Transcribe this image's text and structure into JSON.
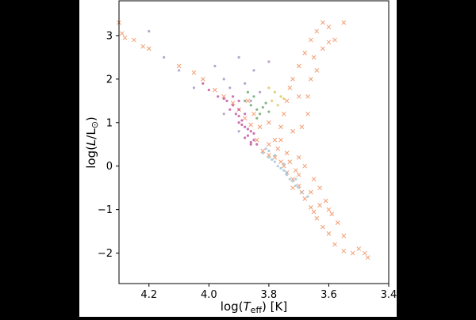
{
  "chart_data": {
    "type": "scatter",
    "title": "",
    "xlabel": "log(T_eff) [K]",
    "ylabel": "log(L/L_⊙)",
    "xlim": [
      4.3,
      3.4
    ],
    "ylim": [
      -2.7,
      3.8
    ],
    "x_inverted": true,
    "x_ticks": [
      "4.2",
      "4.0",
      "3.8",
      "3.6",
      "3.4"
    ],
    "y_ticks": [
      "−2",
      "−1",
      "0",
      "1",
      "2",
      "3"
    ],
    "grid": false,
    "legend": null,
    "series": [
      {
        "marker": "x",
        "color": "#f08c5a",
        "points": [
          [
            4.3,
            3.3
          ],
          [
            4.29,
            3.05
          ],
          [
            4.28,
            2.95
          ],
          [
            4.25,
            2.9
          ],
          [
            4.22,
            2.75
          ],
          [
            4.2,
            2.7
          ],
          [
            4.1,
            2.3
          ],
          [
            4.05,
            2.15
          ],
          [
            4.02,
            2.0
          ],
          [
            3.98,
            1.75
          ],
          [
            3.95,
            1.6
          ],
          [
            3.92,
            1.45
          ],
          [
            3.9,
            1.3
          ],
          [
            3.88,
            1.1
          ],
          [
            3.86,
            0.95
          ],
          [
            3.84,
            0.6
          ],
          [
            3.82,
            0.35
          ],
          [
            3.8,
            0.25
          ],
          [
            3.78,
            0.2
          ],
          [
            3.76,
            0.1
          ],
          [
            3.75,
            0.0
          ],
          [
            3.74,
            -0.15
          ],
          [
            3.72,
            -0.3
          ],
          [
            3.7,
            -0.45
          ],
          [
            3.69,
            -0.6
          ],
          [
            3.68,
            -0.75
          ],
          [
            3.66,
            -0.95
          ],
          [
            3.65,
            -1.05
          ],
          [
            3.64,
            -1.2
          ],
          [
            3.62,
            -1.4
          ],
          [
            3.6,
            -1.55
          ],
          [
            3.58,
            -1.8
          ],
          [
            3.55,
            -1.95
          ],
          [
            3.52,
            -2.0
          ],
          [
            3.48,
            -2.0
          ],
          [
            3.78,
            0.6
          ],
          [
            3.76,
            0.9
          ],
          [
            3.75,
            1.2
          ],
          [
            3.74,
            1.5
          ],
          [
            3.73,
            1.8
          ],
          [
            3.72,
            2.0
          ],
          [
            3.7,
            2.3
          ],
          [
            3.68,
            2.6
          ],
          [
            3.66,
            2.9
          ],
          [
            3.64,
            3.1
          ],
          [
            3.62,
            3.3
          ],
          [
            3.6,
            3.2
          ],
          [
            3.7,
            1.6
          ],
          [
            3.67,
            1.2
          ],
          [
            3.66,
            2.0
          ],
          [
            3.65,
            2.5
          ],
          [
            3.64,
            2.2
          ],
          [
            3.62,
            2.7
          ],
          [
            3.6,
            2.85
          ],
          [
            3.58,
            2.9
          ],
          [
            3.55,
            3.3
          ],
          [
            3.7,
            0.2
          ],
          [
            3.72,
            0.8
          ],
          [
            3.77,
            0.4
          ],
          [
            3.68,
            0.0
          ],
          [
            3.65,
            -0.3
          ],
          [
            3.63,
            -0.5
          ],
          [
            3.61,
            -0.8
          ],
          [
            3.59,
            -1.1
          ],
          [
            3.57,
            -1.3
          ],
          [
            3.8,
            0.5
          ],
          [
            3.83,
            0.9
          ],
          [
            3.85,
            1.2
          ],
          [
            3.87,
            1.5
          ],
          [
            3.8,
            1.0
          ],
          [
            3.7,
            -0.2
          ],
          [
            3.72,
            -0.5
          ],
          [
            3.74,
            0.3
          ],
          [
            3.76,
            0.6
          ],
          [
            3.69,
            0.9
          ],
          [
            3.67,
            1.6
          ],
          [
            3.6,
            -1.0
          ],
          [
            3.55,
            -1.6
          ],
          [
            3.5,
            -1.9
          ],
          [
            3.47,
            -2.1
          ],
          [
            3.63,
            -0.9
          ],
          [
            3.66,
            -0.6
          ],
          [
            3.71,
            -0.1
          ],
          [
            3.73,
            0.1
          ]
        ]
      },
      {
        "marker": "dot",
        "color": "#c0509a",
        "points": [
          [
            3.92,
            1.4
          ],
          [
            3.9,
            1.3
          ],
          [
            3.88,
            1.2
          ],
          [
            3.9,
            1.0
          ],
          [
            3.88,
            0.9
          ],
          [
            3.86,
            0.8
          ],
          [
            3.87,
            0.7
          ],
          [
            3.85,
            0.6
          ],
          [
            3.86,
            0.5
          ],
          [
            3.84,
            0.5
          ],
          [
            3.92,
            1.6
          ],
          [
            3.94,
            1.5
          ],
          [
            3.9,
            1.5
          ],
          [
            3.89,
            1.05
          ],
          [
            3.87,
            0.85
          ],
          [
            3.91,
            1.2
          ],
          [
            3.85,
            0.75
          ],
          [
            3.93,
            1.3
          ],
          [
            3.95,
            1.55
          ],
          [
            3.88,
            0.65
          ],
          [
            4.02,
            1.9
          ],
          [
            4.0,
            1.75
          ],
          [
            3.97,
            1.6
          ],
          [
            3.89,
            0.95
          ],
          [
            3.86,
            0.55
          ],
          [
            3.9,
            1.15
          ]
        ]
      },
      {
        "marker": "dot",
        "color": "#66a266",
        "points": [
          [
            3.86,
            1.4
          ],
          [
            3.84,
            1.3
          ],
          [
            3.83,
            1.2
          ],
          [
            3.88,
            1.5
          ],
          [
            3.85,
            1.6
          ],
          [
            3.82,
            1.35
          ],
          [
            3.8,
            1.25
          ],
          [
            3.87,
            1.7
          ],
          [
            3.84,
            1.1
          ],
          [
            3.81,
            1.45
          ]
        ]
      },
      {
        "marker": "dot",
        "color": "#a78fc0",
        "points": [
          [
            4.2,
            3.1
          ],
          [
            4.15,
            2.5
          ],
          [
            4.1,
            2.2
          ],
          [
            4.05,
            1.8
          ],
          [
            3.98,
            2.3
          ],
          [
            3.95,
            2.0
          ],
          [
            3.93,
            1.8
          ],
          [
            3.9,
            2.5
          ],
          [
            3.88,
            1.9
          ],
          [
            3.85,
            2.2
          ],
          [
            3.83,
            1.7
          ],
          [
            3.8,
            2.4
          ],
          [
            3.95,
            1.2
          ],
          [
            3.9,
            0.8
          ],
          [
            3.86,
            1.5
          ]
        ]
      },
      {
        "marker": "dot",
        "color": "#d7c85c",
        "points": [
          [
            3.78,
            1.7
          ],
          [
            3.76,
            1.6
          ],
          [
            3.79,
            1.5
          ],
          [
            3.77,
            1.4
          ],
          [
            3.75,
            1.55
          ],
          [
            3.8,
            1.8
          ]
        ]
      },
      {
        "marker": "dot",
        "color": "#9fc4d8",
        "points": [
          [
            3.82,
            0.3
          ],
          [
            3.8,
            0.2
          ],
          [
            3.78,
            0.1
          ],
          [
            3.77,
            0.0
          ],
          [
            3.75,
            -0.1
          ],
          [
            3.74,
            -0.2
          ],
          [
            3.73,
            -0.3
          ],
          [
            3.71,
            -0.45
          ],
          [
            3.7,
            -0.5
          ],
          [
            3.69,
            -0.6
          ],
          [
            3.8,
            0.35
          ],
          [
            3.79,
            0.15
          ],
          [
            3.76,
            -0.05
          ],
          [
            3.72,
            -0.35
          ],
          [
            3.67,
            -0.7
          ],
          [
            3.81,
            0.4
          ],
          [
            3.78,
            0.25
          ],
          [
            3.75,
            0.05
          ],
          [
            3.74,
            -0.15
          ],
          [
            3.71,
            -0.3
          ]
        ]
      }
    ]
  }
}
